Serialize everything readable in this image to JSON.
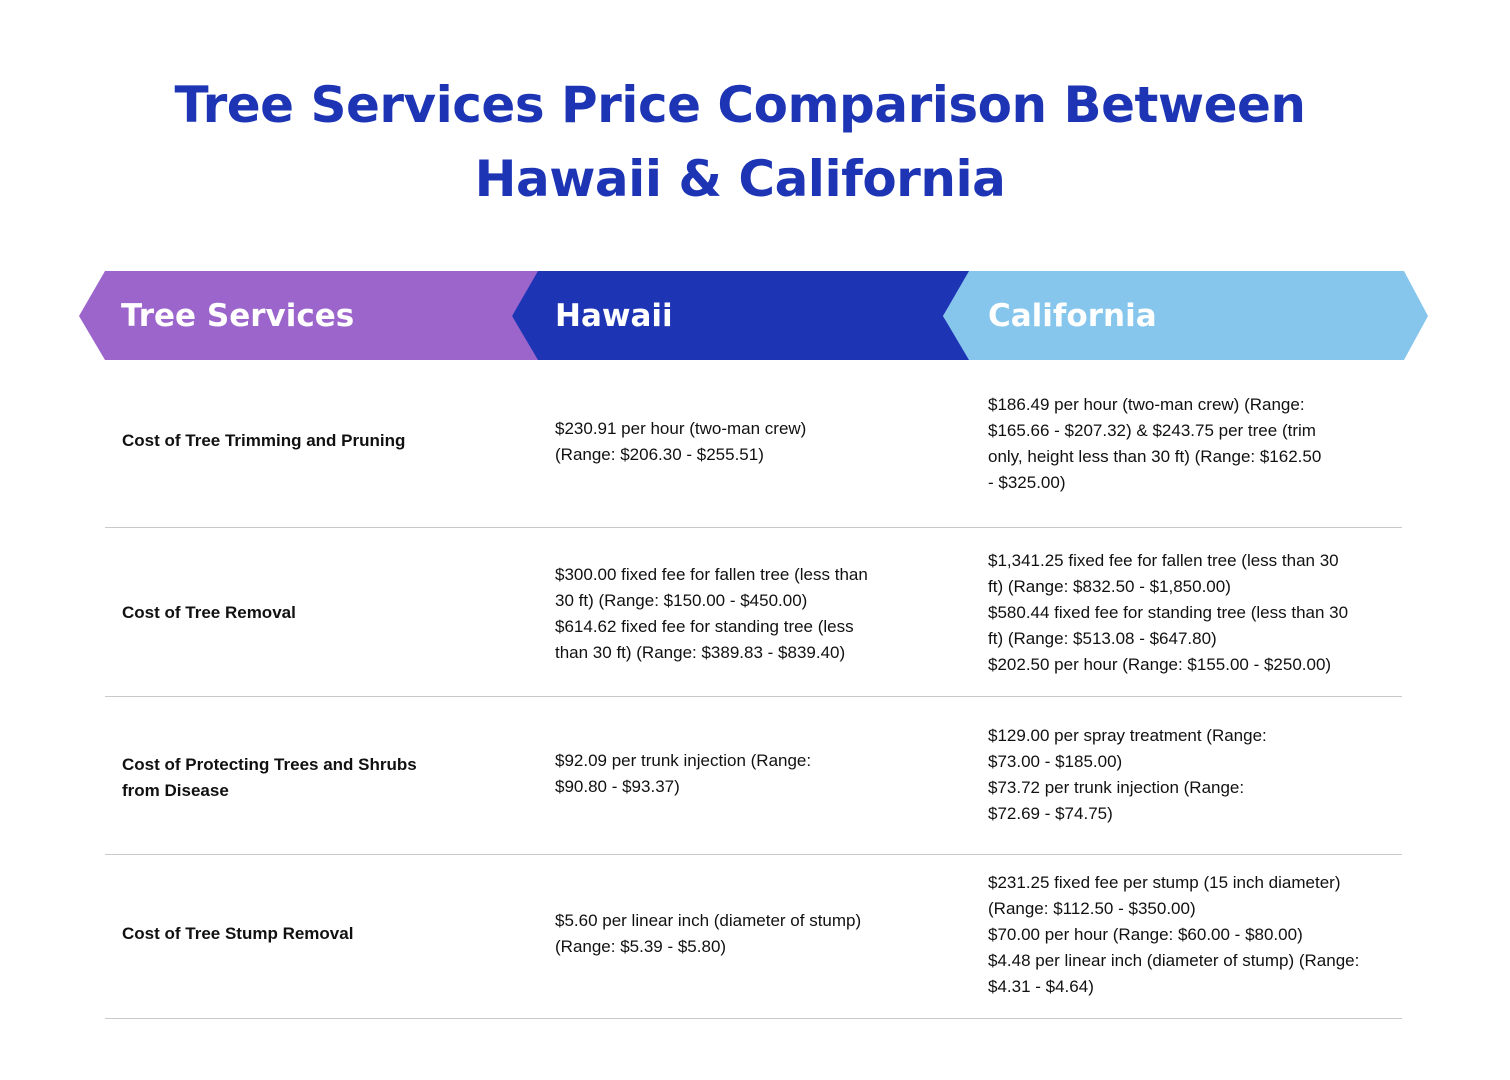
{
  "title": {
    "line1": "Tree Services Price Comparison Between",
    "line2": "Hawaii  & California"
  },
  "colors": {
    "title": "#1d35b5",
    "tree_services_header": "#9b65cb",
    "hawaii_header": "#1d35b5",
    "california_header": "#87c6ec",
    "divider": "#c9c9c9"
  },
  "headers": {
    "services": "Tree Services",
    "hawaii": "Hawaii",
    "california": "California"
  },
  "rows": [
    {
      "label": [
        "Cost of Tree Trimming and Pruning"
      ],
      "hawaii": [
        "$230.91 per hour (two-man crew)",
        "(Range: $206.30 - $255.51)"
      ],
      "california": [
        "$186.49 per hour (two-man crew) (Range:",
        "$165.66 - $207.32) & $243.75 per tree (trim",
        "only, height less than 30 ft) (Range: $162.50",
        "- $325.00)"
      ]
    },
    {
      "label": [
        "Cost of Tree Removal"
      ],
      "hawaii": [
        "$300.00 fixed fee for fallen tree (less than",
        "30 ft) (Range: $150.00 - $450.00)",
        "$614.62 fixed fee for standing tree (less",
        "than 30 ft) (Range: $389.83 - $839.40)"
      ],
      "california": [
        "$1,341.25 fixed fee for fallen tree (less than 30",
        "ft) (Range: $832.50 - $1,850.00)",
        "$580.44 fixed fee for standing tree (less than 30",
        "ft) (Range: $513.08 - $647.80)",
        "$202.50 per hour (Range: $155.00 - $250.00)"
      ]
    },
    {
      "label": [
        "Cost of Protecting Trees and Shrubs",
        "from Disease"
      ],
      "hawaii": [
        "$92.09 per trunk injection (Range:",
        "$90.80 - $93.37)"
      ],
      "california": [
        "$129.00 per spray treatment (Range:",
        "$73.00 - $185.00)",
        "$73.72 per trunk injection (Range:",
        "$72.69 - $74.75)"
      ]
    },
    {
      "label": [
        "Cost of Tree Stump Removal"
      ],
      "hawaii": [
        "$5.60 per linear inch (diameter of stump)",
        "(Range: $5.39 - $5.80)"
      ],
      "california": [
        "$231.25 fixed fee per stump (15 inch diameter)",
        "(Range: $112.50 - $350.00)",
        "$70.00 per hour (Range: $60.00 - $80.00)",
        "$4.48 per linear inch (diameter of stump) (Range:",
        "$4.31 - $4.64)"
      ]
    }
  ]
}
